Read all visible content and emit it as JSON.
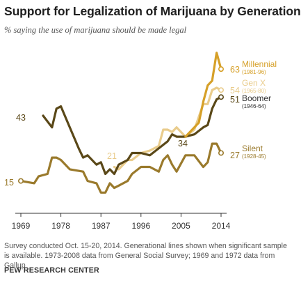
{
  "title": "Support for Legalization of Marijuana by Generation",
  "subtitle": "% saying the use of marijuana should be made legal",
  "note": "Survey conducted Oct. 15-20, 2014. Generational lines shown when significant sample is available. 1973-2008 data from General Social Survey; 1969 and 1972 data from Gallup",
  "source": "PEW RESEARCH CENTER",
  "chart_data": {
    "type": "line",
    "title": "Support for Legalization of Marijuana by Generation",
    "xlabel": "",
    "ylabel": "",
    "xlim": [
      1969,
      2014
    ],
    "ylim": [
      5,
      75
    ],
    "x_ticks": [
      1969,
      1978,
      1987,
      1996,
      2005,
      2014
    ],
    "grid": false,
    "legend": "direct labels at line ends (right)",
    "series": [
      {
        "name": "Millennial",
        "years": "(1981-96)",
        "color": "#d6a028",
        "end_label": "63",
        "points": [
          [
            2006,
            34
          ],
          [
            2008,
            38
          ],
          [
            2009,
            40
          ],
          [
            2010,
            49
          ],
          [
            2011,
            56
          ],
          [
            2012,
            58
          ],
          [
            2013,
            70
          ],
          [
            2014,
            63
          ]
        ]
      },
      {
        "name": "Gen X",
        "years": "(1965-80)",
        "color": "#e9cc8c",
        "start_label": "21",
        "end_label": "54",
        "points": [
          [
            1990,
            21
          ],
          [
            1991,
            20
          ],
          [
            1993,
            24
          ],
          [
            1994,
            24
          ],
          [
            1996,
            27
          ],
          [
            1998,
            28
          ],
          [
            2000,
            30
          ],
          [
            2001,
            37
          ],
          [
            2002,
            37
          ],
          [
            2003,
            36
          ],
          [
            2004,
            38
          ],
          [
            2006,
            34
          ],
          [
            2008,
            37
          ],
          [
            2010,
            48
          ],
          [
            2011,
            48
          ],
          [
            2012,
            54
          ],
          [
            2013,
            55
          ],
          [
            2014,
            54
          ]
        ]
      },
      {
        "name": "Boomer",
        "years": "(1946-64)",
        "color": "#5a4818",
        "start_label": "43",
        "end_label": "51",
        "points": [
          [
            1974,
            43
          ],
          [
            1976,
            38
          ],
          [
            1977,
            46
          ],
          [
            1978,
            47
          ],
          [
            1980,
            38
          ],
          [
            1982,
            29
          ],
          [
            1983,
            25
          ],
          [
            1984,
            26
          ],
          [
            1986,
            22
          ],
          [
            1987,
            23
          ],
          [
            1988,
            18
          ],
          [
            1989,
            20
          ],
          [
            1990,
            18
          ],
          [
            1991,
            22
          ],
          [
            1993,
            24
          ],
          [
            1994,
            27
          ],
          [
            1996,
            27
          ],
          [
            1998,
            26
          ],
          [
            2000,
            29
          ],
          [
            2002,
            32
          ],
          [
            2003,
            35
          ],
          [
            2004,
            34
          ],
          [
            2006,
            34
          ],
          [
            2008,
            35
          ],
          [
            2010,
            38
          ],
          [
            2011,
            39
          ],
          [
            2012,
            46
          ],
          [
            2013,
            50
          ],
          [
            2014,
            51
          ]
        ]
      },
      {
        "name": "Silent",
        "years": "(1928-45)",
        "color": "#9a7a2c",
        "start_label": "15",
        "end_label": "27",
        "points": [
          [
            1969,
            15
          ],
          [
            1972,
            14
          ],
          [
            1973,
            17
          ],
          [
            1975,
            18
          ],
          [
            1976,
            25
          ],
          [
            1977,
            25
          ],
          [
            1978,
            24
          ],
          [
            1980,
            20
          ],
          [
            1983,
            19
          ],
          [
            1984,
            15
          ],
          [
            1986,
            14
          ],
          [
            1987,
            10
          ],
          [
            1988,
            10
          ],
          [
            1989,
            14
          ],
          [
            1990,
            12
          ],
          [
            1991,
            13
          ],
          [
            1993,
            15
          ],
          [
            1994,
            18
          ],
          [
            1996,
            21
          ],
          [
            1998,
            21
          ],
          [
            2000,
            19
          ],
          [
            2001,
            24
          ],
          [
            2002,
            26
          ],
          [
            2003,
            22
          ],
          [
            2004,
            19
          ],
          [
            2006,
            26
          ],
          [
            2008,
            26
          ],
          [
            2010,
            21
          ],
          [
            2011,
            23
          ],
          [
            2012,
            31
          ],
          [
            2013,
            31
          ],
          [
            2014,
            27
          ]
        ]
      }
    ]
  }
}
